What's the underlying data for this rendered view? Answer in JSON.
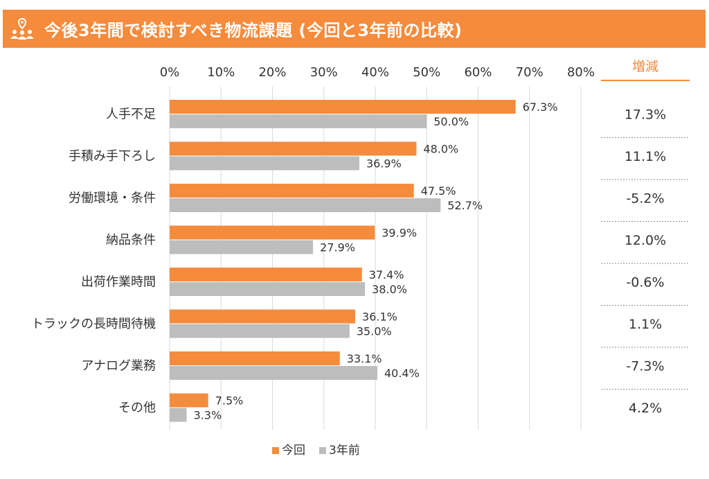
{
  "header": {
    "title": "今後3年間で検討すべき物流課題 (今回と3年前の比較)",
    "icon": "people-location-icon"
  },
  "colors": {
    "header_bg": "#F58B3C",
    "current": "#F58B3C",
    "previous": "#BDBDBD",
    "grid": "#D9D9D9"
  },
  "chart_data": {
    "type": "bar",
    "orientation": "horizontal",
    "categories": [
      "人手不足",
      "手積み手下ろし",
      "労働環境・条件",
      "納品条件",
      "出荷作業時間",
      "トラックの長時間待機",
      "アナログ業務",
      "その他"
    ],
    "series": [
      {
        "name": "今回",
        "values": [
          67.3,
          48.0,
          47.5,
          39.9,
          37.4,
          36.1,
          33.1,
          7.5
        ],
        "labels": [
          "67.3%",
          "48.0%",
          "47.5%",
          "39.9%",
          "37.4%",
          "36.1%",
          "33.1%",
          "7.5%"
        ]
      },
      {
        "name": "3年前",
        "values": [
          50.0,
          36.9,
          52.7,
          27.9,
          38.0,
          35.0,
          40.4,
          3.3
        ],
        "labels": [
          "50.0%",
          "36.9%",
          "52.7%",
          "27.9%",
          "38.0%",
          "35.0%",
          "40.4%",
          "3.3%"
        ]
      }
    ],
    "xlim": [
      0,
      80
    ],
    "xticks": [
      "0%",
      "10%",
      "20%",
      "30%",
      "40%",
      "50%",
      "60%",
      "70%",
      "80%"
    ],
    "grid": true,
    "legend_position": "bottom-center",
    "delta_header": "増減",
    "deltas": [
      "17.3%",
      "11.1%",
      "-5.2%",
      "12.0%",
      "-0.6%",
      "1.1%",
      "-7.3%",
      "4.2%"
    ]
  }
}
